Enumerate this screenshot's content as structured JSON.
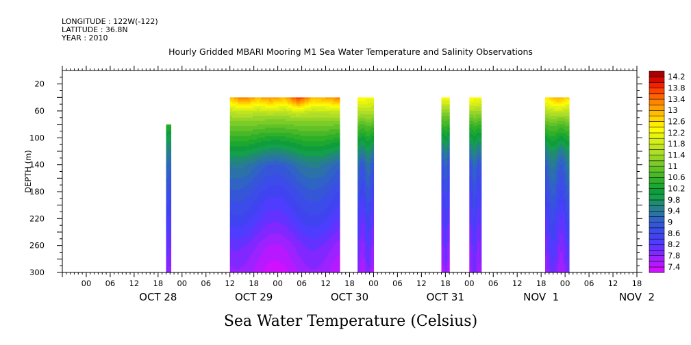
{
  "header": {
    "longitude": "LONGITUDE : 122W(-122)",
    "latitude": "LATITUDE : 36.8N",
    "year": "YEAR : 2010",
    "title": "Hourly Gridded MBARI Mooring M1 Sea Water Temperature and Salinity Observations"
  },
  "caption": "Sea Water Temperature (Celsius)",
  "chart_data": {
    "type": "heatmap",
    "title": "Hourly Gridded MBARI Mooring M1 Sea Water Temperature and Salinity Observations",
    "xlabel": "",
    "ylabel": "DEPTH (m)",
    "variable": "Sea Water Temperature (Celsius)",
    "x_unit": "hours since 2010-10-28 00:00 (axis printed as day labels with 6-hourly ticks)",
    "xlim": [
      -18,
      126
    ],
    "ylim": [
      300,
      0
    ],
    "y_ticks": [
      20,
      60,
      100,
      140,
      180,
      220,
      260,
      300
    ],
    "y_reversed": true,
    "x_hour_ticks": [
      "00",
      "06",
      "12",
      "18",
      "00",
      "06",
      "12",
      "18",
      "00",
      "06",
      "12",
      "18",
      "00",
      "06",
      "12",
      "18",
      "00",
      "06",
      "12",
      "18",
      "00",
      "06",
      "12",
      "18",
      "00"
    ],
    "x_day_labels": [
      {
        "label": "OCT 28",
        "x": 0
      },
      {
        "label": "OCT 29",
        "x": 24
      },
      {
        "label": "OCT 30",
        "x": 48
      },
      {
        "label": "OCT 31",
        "x": 72
      },
      {
        "label": "NOV  1",
        "x": 96
      },
      {
        "label": "NOV  2",
        "x": 120
      }
    ],
    "colorbar": {
      "labels": [
        "14.2",
        "13.8",
        "13.4",
        "13",
        "12.6",
        "12.2",
        "11.8",
        "11.4",
        "11",
        "10.6",
        "10.2",
        "9.8",
        "9.4",
        "9",
        "8.6",
        "8.2",
        "7.8",
        "7.4"
      ],
      "levels": [
        7.2,
        7.4,
        7.6,
        7.8,
        8.0,
        8.2,
        8.4,
        8.6,
        8.8,
        9.0,
        9.2,
        9.4,
        9.6,
        9.8,
        10.0,
        10.2,
        10.4,
        10.6,
        10.8,
        11.0,
        11.2,
        11.4,
        11.6,
        11.8,
        12.0,
        12.2,
        12.4,
        12.6,
        12.8,
        13.0,
        13.2,
        13.4,
        13.6,
        13.8,
        14.0,
        14.2,
        14.4
      ],
      "colors": [
        "#d010ff",
        "#b818ff",
        "#9c22ff",
        "#8028ff",
        "#6432ff",
        "#4e3cff",
        "#4044f0",
        "#3c4ce8",
        "#3656d8",
        "#2f64c4",
        "#2a72a8",
        "#26808c",
        "#1f8c70",
        "#13a04a",
        "#109c3c",
        "#1ca830",
        "#30b028",
        "#48b828",
        "#62c228",
        "#7ccc28",
        "#96d428",
        "#aede28",
        "#c2e420",
        "#d4ee18",
        "#e8f410",
        "#fcfc08",
        "#ffec00",
        "#ffd400",
        "#ffbc00",
        "#ffa000",
        "#ff8400",
        "#ff6400",
        "#ff4400",
        "#f22200",
        "#d80800",
        "#a80000"
      ]
    },
    "segments": [
      {
        "start": 8.0,
        "end": 9.2,
        "top_depth": 80,
        "surface": [
          10.4,
          10.4
        ],
        "profile": [
          [
            80,
            10.4
          ],
          [
            100,
            9.8
          ],
          [
            140,
            9.0
          ],
          [
            180,
            8.6
          ],
          [
            220,
            8.2
          ],
          [
            260,
            7.9
          ],
          [
            300,
            7.6
          ]
        ]
      },
      {
        "start": 24.0,
        "end": 51.5,
        "top_depth": 40,
        "surface": [
          12.8,
          13.4,
          12.9,
          13.2,
          12.9,
          13.8,
          12.9,
          13.0,
          13.3
        ],
        "profile": [
          [
            40,
            12.8
          ],
          [
            60,
            11.6
          ],
          [
            80,
            11.0
          ],
          [
            100,
            10.4
          ],
          [
            120,
            9.8
          ],
          [
            140,
            9.2
          ],
          [
            180,
            8.7
          ],
          [
            220,
            8.3
          ],
          [
            260,
            7.8
          ],
          [
            300,
            7.5
          ]
        ]
      },
      {
        "start": 56.0,
        "end": 60.0,
        "top_depth": 40,
        "surface": [
          12.4,
          12.2
        ],
        "profile": [
          [
            40,
            12.4
          ],
          [
            60,
            11.6
          ],
          [
            80,
            10.8
          ],
          [
            100,
            10.2
          ],
          [
            120,
            9.6
          ],
          [
            140,
            9.1
          ],
          [
            180,
            8.7
          ],
          [
            220,
            8.3
          ],
          [
            260,
            8.0
          ],
          [
            300,
            7.7
          ]
        ]
      },
      {
        "start": 77.0,
        "end": 79.0,
        "top_depth": 40,
        "surface": [
          12.2,
          12.2
        ],
        "profile": [
          [
            40,
            12.2
          ],
          [
            60,
            11.2
          ],
          [
            80,
            10.6
          ],
          [
            100,
            10.0
          ],
          [
            120,
            9.4
          ],
          [
            140,
            9.0
          ],
          [
            180,
            8.6
          ],
          [
            220,
            8.3
          ],
          [
            260,
            8.0
          ],
          [
            300,
            7.7
          ]
        ]
      },
      {
        "start": 84.0,
        "end": 87.0,
        "top_depth": 40,
        "surface": [
          12.4,
          12.2
        ],
        "profile": [
          [
            40,
            12.4
          ],
          [
            60,
            11.4
          ],
          [
            80,
            10.6
          ],
          [
            100,
            10.0
          ],
          [
            120,
            9.5
          ],
          [
            140,
            9.0
          ],
          [
            180,
            8.6
          ],
          [
            220,
            8.3
          ],
          [
            260,
            8.0
          ],
          [
            300,
            7.8
          ]
        ]
      },
      {
        "start": 103.0,
        "end": 109.0,
        "top_depth": 40,
        "surface": [
          12.4,
          13.0,
          12.6
        ],
        "profile": [
          [
            40,
            12.6
          ],
          [
            60,
            11.6
          ],
          [
            80,
            10.8
          ],
          [
            100,
            10.2
          ],
          [
            120,
            9.6
          ],
          [
            140,
            9.2
          ],
          [
            180,
            8.8
          ],
          [
            220,
            8.4
          ],
          [
            260,
            8.1
          ],
          [
            300,
            7.8
          ]
        ]
      }
    ]
  }
}
